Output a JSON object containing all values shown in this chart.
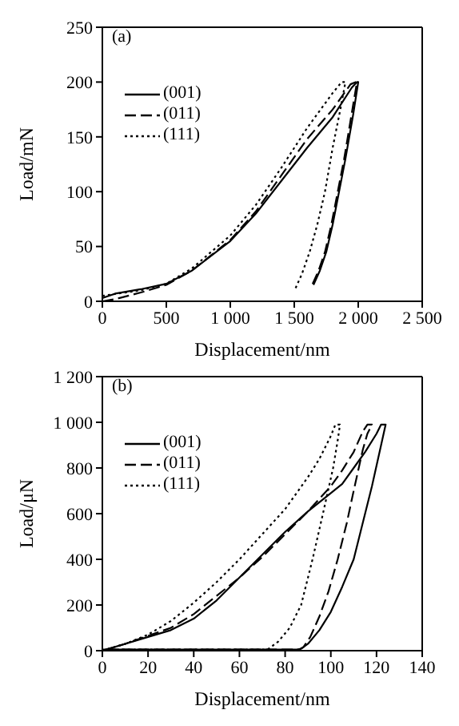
{
  "chart_data": [
    {
      "type": "line",
      "annotations": [
        "(a)"
      ],
      "xlabel": "Displacement/nm",
      "ylabel": "Load/mN",
      "xlim": [
        0,
        2500
      ],
      "ylim": [
        0,
        250
      ],
      "xticks": [
        0,
        500,
        {
          "value": 1000,
          "label": "1 000"
        },
        {
          "value": 1500,
          "label": "1 500"
        },
        {
          "value": 2000,
          "label": "2 000"
        },
        {
          "value": 2500,
          "label": "2 500"
        }
      ],
      "yticks": [
        0,
        50,
        100,
        150,
        200,
        250
      ],
      "legend": "top left",
      "grid": false,
      "marker": "none",
      "series": [
        {
          "name": "(001)",
          "color": "#000000",
          "line_style": "solid",
          "x": [
            0,
            100,
            300,
            500,
            700,
            1000,
            1200,
            1400,
            1600,
            1800,
            1950,
            1990,
            2000,
            1960,
            1900,
            1850,
            1800,
            1750,
            1700,
            1650
          ],
          "values": [
            3,
            7,
            11,
            16,
            28,
            55,
            80,
            110,
            140,
            168,
            195,
            200,
            200,
            170,
            130,
            100,
            70,
            45,
            28,
            15
          ]
        },
        {
          "name": "(011)",
          "color": "#000000",
          "line_style": "dashed",
          "x": [
            0,
            100,
            300,
            500,
            700,
            1000,
            1200,
            1400,
            1600,
            1800,
            1940,
            1980,
            1990,
            1940,
            1890,
            1840,
            1790,
            1740,
            1690,
            1640
          ],
          "values": [
            0,
            2,
            8,
            15,
            28,
            56,
            82,
            115,
            148,
            175,
            198,
            200,
            200,
            165,
            130,
            100,
            70,
            45,
            28,
            15
          ]
        },
        {
          "name": "(111)",
          "color": "#000000",
          "line_style": "dotted",
          "x": [
            0,
            300,
            500,
            700,
            1000,
            1200,
            1400,
            1600,
            1800,
            1870,
            1900,
            1860,
            1800,
            1740,
            1680,
            1620,
            1560,
            1510
          ],
          "values": [
            5,
            10,
            16,
            30,
            60,
            88,
            122,
            158,
            190,
            200,
            200,
            175,
            140,
            100,
            70,
            45,
            25,
            12
          ]
        }
      ]
    },
    {
      "type": "line",
      "annotations": [
        "(b)"
      ],
      "xlabel": "Displacement/nm",
      "ylabel": "Load/μN",
      "xlim": [
        0,
        140
      ],
      "ylim": [
        0,
        1200
      ],
      "xticks": [
        0,
        20,
        40,
        60,
        80,
        100,
        120,
        140
      ],
      "yticks": [
        0,
        200,
        400,
        600,
        800,
        {
          "value": 1000,
          "label": "1 000"
        },
        {
          "value": 1200,
          "label": "1 200"
        }
      ],
      "legend": "top left",
      "grid": false,
      "marker": "none",
      "series": [
        {
          "name": "(001)",
          "color": "#000000",
          "line_style": "solid",
          "x": [
            0,
            10,
            20,
            30,
            40,
            50,
            60,
            70,
            80,
            90,
            100,
            105,
            110,
            115,
            120,
            122,
            124,
            122,
            118,
            113,
            110,
            105,
            100,
            95,
            90,
            87,
            85,
            60,
            30,
            0
          ],
          "values": [
            0,
            30,
            60,
            90,
            140,
            220,
            320,
            420,
            520,
            610,
            690,
            730,
            800,
            870,
            950,
            990,
            990,
            900,
            720,
            520,
            400,
            280,
            170,
            90,
            30,
            8,
            5,
            5,
            5,
            5
          ]
        },
        {
          "name": "(011)",
          "color": "#000000",
          "line_style": "dashed",
          "x": [
            0,
            10,
            20,
            30,
            40,
            50,
            60,
            70,
            80,
            90,
            100,
            105,
            110,
            114,
            116,
            118,
            116,
            114,
            110,
            107,
            103,
            99,
            95,
            91,
            88,
            86,
            60,
            30,
            0
          ],
          "values": [
            0,
            30,
            65,
            100,
            160,
            240,
            320,
            410,
            510,
            610,
            720,
            790,
            870,
            960,
            990,
            990,
            950,
            880,
            700,
            560,
            400,
            260,
            150,
            60,
            15,
            5,
            5,
            5,
            5
          ]
        },
        {
          "name": "(111)",
          "color": "#000000",
          "line_style": "dotted",
          "x": [
            0,
            10,
            20,
            30,
            40,
            50,
            60,
            70,
            80,
            90,
            95,
            100,
            102,
            104,
            103,
            101,
            97,
            92,
            87,
            82,
            77,
            73,
            72,
            40,
            0
          ],
          "values": [
            0,
            30,
            70,
            130,
            210,
            300,
            400,
            510,
            620,
            760,
            840,
            940,
            990,
            990,
            920,
            800,
            620,
            400,
            200,
            100,
            40,
            10,
            5,
            5,
            5
          ]
        }
      ]
    }
  ]
}
